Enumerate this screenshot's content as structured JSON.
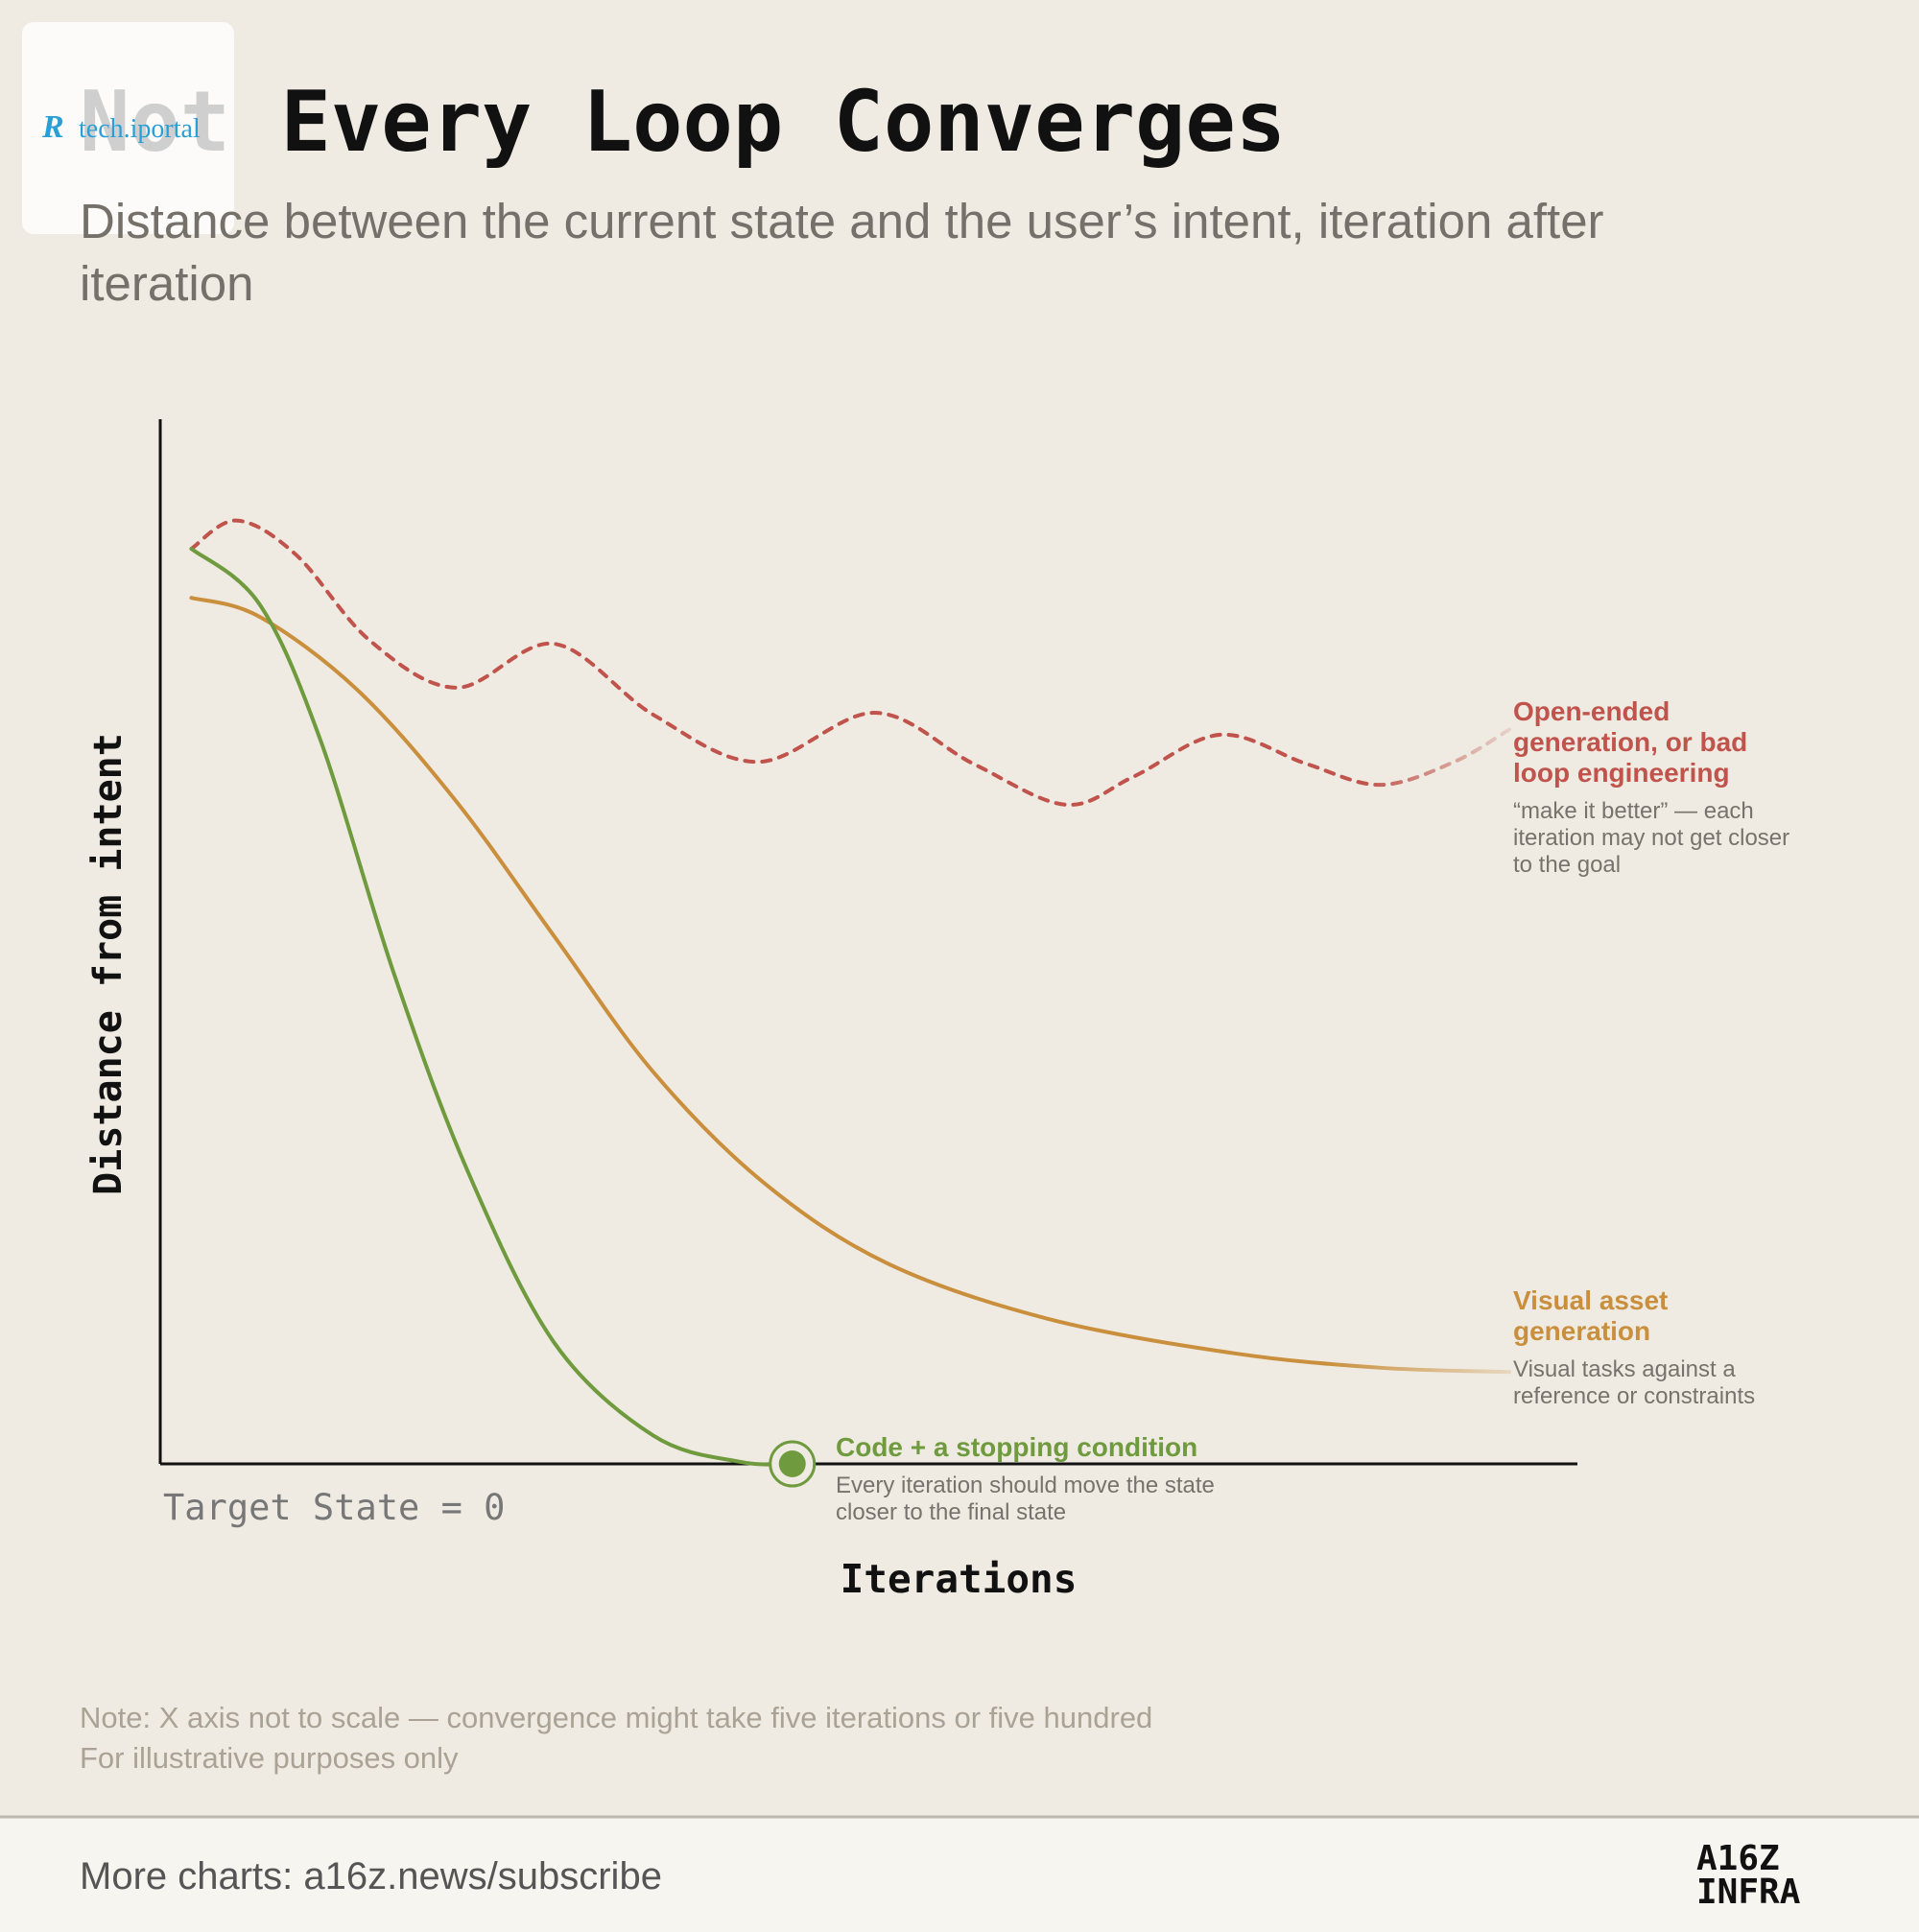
{
  "watermark": "tech.iportal",
  "chart_data": {
    "type": "line",
    "title": "Not Every Loop Converges",
    "subtitle": "Distance between the current state and the user’s intent, iteration after iteration",
    "y_label": "Distance from intent",
    "x_label": "Iterations",
    "origin_label": "Target State = 0",
    "xlim": [
      0,
      100
    ],
    "ylim": [
      0,
      100
    ],
    "series": [
      {
        "name": "Open-ended generation, or bad loop engineering",
        "description": "“make it better” — each iteration may not get closer to the goal",
        "color": "#c0534b",
        "line_style": "dashed",
        "x": [
          2.2,
          5.4,
          9.6,
          14.8,
          20.9,
          27.8,
          34.8,
          42.2,
          50.4,
          57.4,
          63.9,
          68.7,
          74.8,
          80.9,
          86.1,
          91.3,
          95.2
        ],
        "values": [
          87.6,
          90.3,
          87.0,
          78.8,
          74.3,
          78.5,
          71.7,
          67.2,
          71.9,
          67.0,
          63.1,
          65.8,
          69.8,
          67.0,
          65.0,
          67.2,
          70.3
        ]
      },
      {
        "name": "Visual asset generation",
        "description": "Visual tasks against a reference or constraints",
        "color": "#c98f3d",
        "line_style": "solid",
        "x": [
          2.2,
          7.0,
          13.9,
          20.9,
          27.8,
          34.8,
          42.6,
          51.3,
          62.6,
          75.7,
          86.1,
          95.2
        ],
        "values": [
          82.9,
          81.1,
          74.1,
          63.4,
          50.5,
          37.5,
          26.9,
          19.2,
          13.9,
          10.6,
          9.2,
          8.8
        ]
      },
      {
        "name": "Code + a stopping condition",
        "description": "Every iteration should move the state closer to the final state",
        "color": "#6f9a3e",
        "line_style": "solid",
        "end_marker": true,
        "x": [
          2.2,
          7.0,
          11.3,
          16.5,
          21.7,
          27.8,
          34.8,
          40.9,
          44.6
        ],
        "values": [
          87.6,
          82.3,
          69.3,
          46.9,
          28.0,
          11.6,
          2.7,
          0.2,
          0
        ]
      }
    ],
    "notes": [
      "Note: X axis not to scale — convergence might take five iterations or five hundred",
      "For illustrative purposes only"
    ]
  },
  "footer": {
    "link": "More charts: a16z.news/subscribe",
    "logo": [
      "A16Z",
      "INFRA"
    ]
  }
}
